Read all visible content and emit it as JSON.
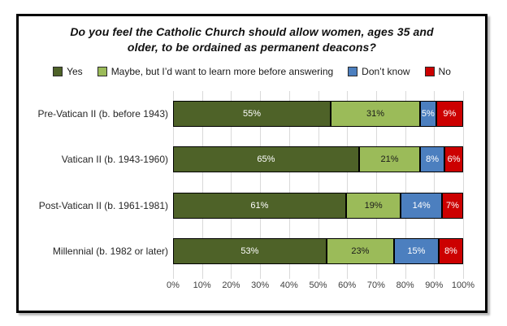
{
  "chart_data": {
    "type": "bar",
    "variant": "100%-stacked-horizontal",
    "title": "Do you feel the Catholic Church should allow women, ages 35 and older, to be ordained as permanent deacons?",
    "title_lines": [
      "Do you feel the Catholic Church should allow women, ages 35 and",
      "older, to be ordained as permanent deacons?"
    ],
    "categories": [
      "Pre-Vatican II (b. before 1943)",
      "Vatican II (b. 1943-1960)",
      "Post-Vatican II (b. 1961-1981)",
      "Millennial (b. 1982 or later)"
    ],
    "series": [
      {
        "name": "Yes",
        "color": "#4E6228",
        "label_color": "#ffffff",
        "values": [
          55,
          65,
          61,
          53
        ]
      },
      {
        "name": "Maybe, but I’d want to learn more before answering",
        "color": "#9BBB59",
        "label_color": "#1a1a1a",
        "values": [
          31,
          21,
          19,
          23
        ]
      },
      {
        "name": "Don’t know",
        "color": "#4C7FBF",
        "label_color": "#ffffff",
        "values": [
          5,
          8,
          14,
          15
        ]
      },
      {
        "name": "No",
        "color": "#CC0000",
        "label_color": "#ffffff",
        "values": [
          9,
          6,
          7,
          8
        ]
      }
    ],
    "value_suffix": "%",
    "x_axis": {
      "min": 0,
      "max": 100,
      "ticks": [
        "0%",
        "10%",
        "20%",
        "30%",
        "40%",
        "50%",
        "60%",
        "70%",
        "80%",
        "90%",
        "100%"
      ]
    },
    "legend_position": "top",
    "grid": true,
    "gridline_color": "#d9d9d9"
  }
}
